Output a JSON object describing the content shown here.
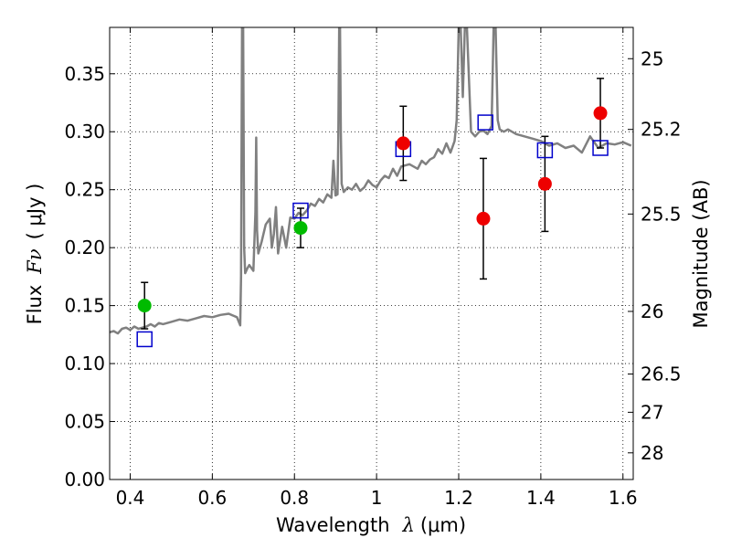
{
  "chart_data": {
    "type": "scatter",
    "xlabel": "Wavelength",
    "xlabel_symbol": "λ",
    "xlabel_unit": "(μm)",
    "ylabel": "Flux",
    "ylabel_symbol": "Fν",
    "ylabel_unit": "( μJy )",
    "right_ylabel": "Magnitude (AB)",
    "xlim": [
      0.35,
      1.625
    ],
    "ylim": [
      0.0,
      0.39
    ],
    "grid": true,
    "grid_style": "dotted",
    "x_ticks": [
      0.4,
      0.6,
      0.8,
      1.0,
      1.2,
      1.4,
      1.6
    ],
    "x_tick_labels": [
      "0.4",
      "0.6",
      "0.8",
      "1",
      "1.2",
      "1.4",
      "1.6"
    ],
    "y_ticks": [
      0.0,
      0.05,
      0.1,
      0.15,
      0.2,
      0.25,
      0.3,
      0.35
    ],
    "y_tick_labels": [
      "0.00",
      "0.05",
      "0.10",
      "0.15",
      "0.20",
      "0.25",
      "0.30",
      "0.35"
    ],
    "magnitude_ticks": [
      {
        "label": "25",
        "flux": 0.363
      },
      {
        "label": "25.2",
        "flux": 0.302
      },
      {
        "label": "25.5",
        "flux": 0.229
      },
      {
        "label": "26",
        "flux": 0.145
      },
      {
        "label": "26.5",
        "flux": 0.091
      },
      {
        "label": "27",
        "flux": 0.058
      },
      {
        "label": "28",
        "flux": 0.023
      }
    ],
    "colors": {
      "spectrum": "#808080",
      "green_points": "#00bb00",
      "red_points": "#ee0000",
      "model_squares": "#0000cc",
      "errorbars": "#000000"
    },
    "series": [
      {
        "name": "model spectrum",
        "style": "line",
        "x": [
          0.35,
          0.36,
          0.37,
          0.38,
          0.39,
          0.4,
          0.41,
          0.42,
          0.43,
          0.44,
          0.45,
          0.46,
          0.47,
          0.48,
          0.5,
          0.52,
          0.54,
          0.56,
          0.58,
          0.6,
          0.62,
          0.64,
          0.66,
          0.668,
          0.67,
          0.6725,
          0.675,
          0.6775,
          0.68,
          0.685,
          0.69,
          0.7,
          0.705,
          0.707,
          0.709,
          0.712,
          0.72,
          0.73,
          0.74,
          0.745,
          0.75,
          0.755,
          0.76,
          0.77,
          0.78,
          0.79,
          0.8,
          0.81,
          0.82,
          0.83,
          0.84,
          0.85,
          0.86,
          0.87,
          0.88,
          0.89,
          0.895,
          0.9,
          0.905,
          0.907,
          0.909,
          0.911,
          0.913,
          0.915,
          0.92,
          0.93,
          0.94,
          0.95,
          0.96,
          0.97,
          0.98,
          0.99,
          1.0,
          1.01,
          1.02,
          1.03,
          1.04,
          1.05,
          1.06,
          1.08,
          1.1,
          1.11,
          1.12,
          1.13,
          1.14,
          1.15,
          1.16,
          1.17,
          1.18,
          1.19,
          1.195,
          1.2,
          1.205,
          1.21,
          1.215,
          1.22,
          1.23,
          1.24,
          1.25,
          1.26,
          1.27,
          1.28,
          1.285,
          1.29,
          1.295,
          1.3,
          1.31,
          1.32,
          1.34,
          1.36,
          1.38,
          1.4,
          1.42,
          1.44,
          1.46,
          1.48,
          1.5,
          1.52,
          1.54,
          1.56,
          1.58,
          1.6,
          1.62
        ],
        "y": [
          0.127,
          0.128,
          0.126,
          0.13,
          0.131,
          0.129,
          0.132,
          0.13,
          0.131,
          0.132,
          0.134,
          0.132,
          0.135,
          0.134,
          0.136,
          0.138,
          0.137,
          0.139,
          0.141,
          0.14,
          0.142,
          0.143,
          0.14,
          0.133,
          0.175,
          0.39,
          0.39,
          0.2,
          0.178,
          0.182,
          0.185,
          0.18,
          0.23,
          0.295,
          0.215,
          0.195,
          0.205,
          0.22,
          0.225,
          0.2,
          0.212,
          0.235,
          0.195,
          0.218,
          0.2,
          0.226,
          0.225,
          0.23,
          0.228,
          0.232,
          0.238,
          0.236,
          0.242,
          0.239,
          0.246,
          0.243,
          0.275,
          0.245,
          0.246,
          0.3,
          0.39,
          0.39,
          0.3,
          0.255,
          0.248,
          0.252,
          0.25,
          0.255,
          0.249,
          0.252,
          0.258,
          0.254,
          0.252,
          0.258,
          0.262,
          0.26,
          0.268,
          0.262,
          0.27,
          0.272,
          0.268,
          0.275,
          0.272,
          0.276,
          0.278,
          0.285,
          0.281,
          0.29,
          0.282,
          0.292,
          0.31,
          0.39,
          0.39,
          0.33,
          0.39,
          0.39,
          0.3,
          0.296,
          0.3,
          0.301,
          0.298,
          0.305,
          0.39,
          0.39,
          0.31,
          0.302,
          0.3,
          0.302,
          0.298,
          0.296,
          0.294,
          0.292,
          0.288,
          0.29,
          0.286,
          0.288,
          0.282,
          0.296,
          0.286,
          0.29,
          0.289,
          0.291,
          0.288
        ]
      },
      {
        "name": "green photometry",
        "style": "points",
        "color": "#00bb00",
        "points": [
          {
            "x": 0.435,
            "y": 0.15,
            "err": 0.02
          },
          {
            "x": 0.815,
            "y": 0.217,
            "err": 0.017
          }
        ]
      },
      {
        "name": "red photometry",
        "style": "points",
        "color": "#ee0000",
        "points": [
          {
            "x": 1.065,
            "y": 0.29,
            "err": 0.032
          },
          {
            "x": 1.26,
            "y": 0.225,
            "err": 0.052
          },
          {
            "x": 1.41,
            "y": 0.255,
            "err": 0.041
          },
          {
            "x": 1.545,
            "y": 0.316,
            "err": 0.03
          }
        ]
      },
      {
        "name": "model photometry",
        "style": "open-squares",
        "color": "#0000cc",
        "points": [
          {
            "x": 0.435,
            "y": 0.121
          },
          {
            "x": 0.815,
            "y": 0.232
          },
          {
            "x": 1.065,
            "y": 0.285
          },
          {
            "x": 1.265,
            "y": 0.308
          },
          {
            "x": 1.41,
            "y": 0.284
          },
          {
            "x": 1.545,
            "y": 0.286
          }
        ]
      }
    ]
  }
}
